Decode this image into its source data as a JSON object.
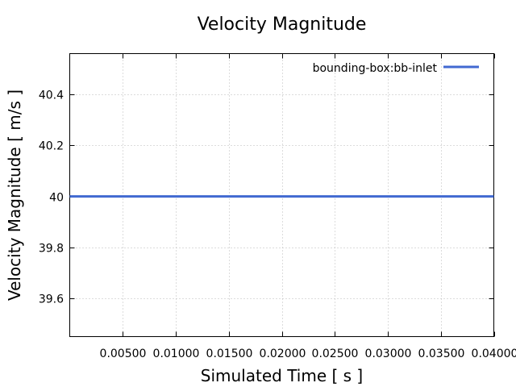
{
  "chart_data": {
    "type": "line",
    "title": "Velocity Magnitude",
    "xlabel": "Simulated Time [ s ]",
    "ylabel": "Velocity Magnitude [ m/s ]",
    "xlim": [
      0.0,
      0.04
    ],
    "ylim": [
      39.45,
      40.56
    ],
    "x_ticks": [
      0.005,
      0.01,
      0.015,
      0.02,
      0.025,
      0.03,
      0.035,
      0.04
    ],
    "x_tick_labels": [
      "0.00500",
      "0.01000",
      "0.01500",
      "0.02000",
      "0.02500",
      "0.03000",
      "0.03500",
      "0.04000"
    ],
    "y_ticks": [
      39.6,
      39.8,
      40.0,
      40.2,
      40.4
    ],
    "y_tick_labels": [
      "39.6",
      "39.8",
      "40",
      "40.2",
      "40.4"
    ],
    "grid": true,
    "legend_position": "top-right",
    "series": [
      {
        "name": "bounding-box:bb-inlet",
        "color": "#4169d1",
        "x": [
          0.0,
          0.04
        ],
        "y": [
          40.0,
          40.0
        ]
      }
    ]
  }
}
